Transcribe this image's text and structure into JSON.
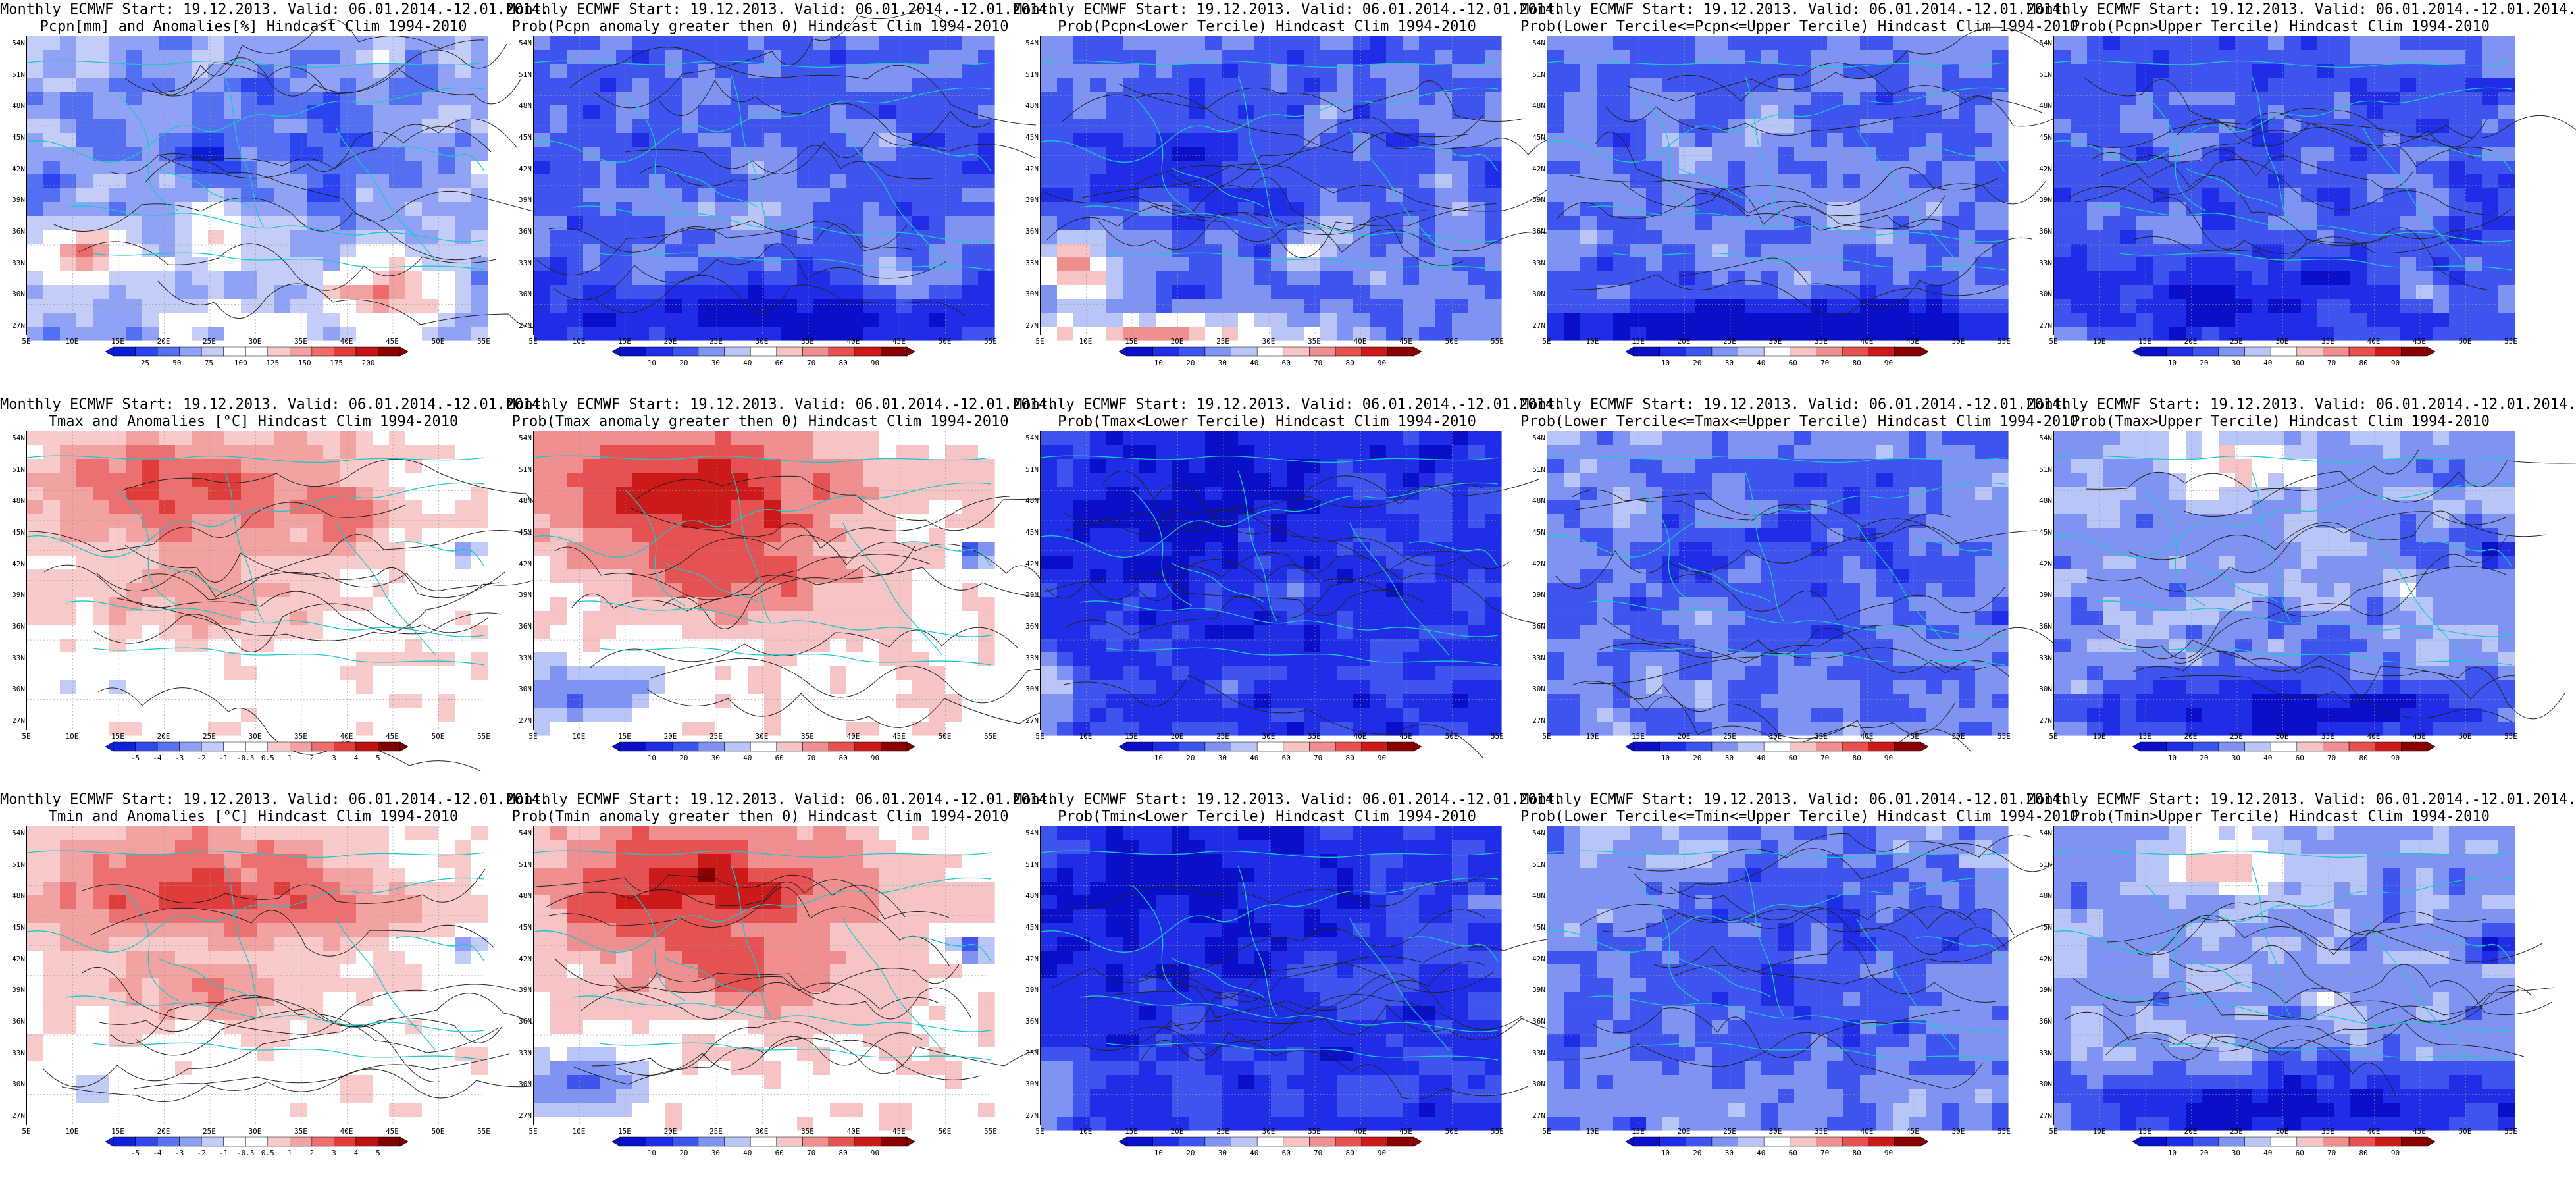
{
  "layout": {
    "rows": 3,
    "cols": 5
  },
  "axes": {
    "lat_labels": [
      "54N",
      "51N",
      "48N",
      "45N",
      "42N",
      "39N",
      "36N",
      "33N",
      "30N",
      "27N"
    ],
    "lon_labels": [
      "5E",
      "10E",
      "15E",
      "20E",
      "25E",
      "30E",
      "35E",
      "40E",
      "45E",
      "50E",
      "55E"
    ]
  },
  "palettes": {
    "anom_pcpn": {
      "colors": [
        "#0a1cd6",
        "#2a45f0",
        "#5470f2",
        "#8fa2f5",
        "#c4cdf8",
        "#ffffff",
        "#ffffff",
        "#f8c9c9",
        "#f3a0a0",
        "#ec6c6c",
        "#e33a3a",
        "#c21414",
        "#8a0000"
      ],
      "labels": [
        "25",
        "50",
        "75",
        "100",
        "125",
        "150",
        "175",
        "200"
      ]
    },
    "anom_temp": {
      "colors": [
        "#1020d8",
        "#3248ec",
        "#5a72f2",
        "#8ea0f5",
        "#c2ccf8",
        "#ffffff",
        "#ffffff",
        "#f8caca",
        "#f3a2a2",
        "#ec7070",
        "#e03c3c",
        "#bc1212",
        "#7e0000"
      ],
      "labels": [
        "-5",
        "-4",
        "-3",
        "-2",
        "-1",
        "-0.5",
        "0.5",
        "1",
        "2",
        "3",
        "4",
        "5"
      ]
    },
    "prob": {
      "colors": [
        "#0a10c8",
        "#1f2ee6",
        "#3d54ef",
        "#7f93f3",
        "#b9c4f7",
        "#ffffff",
        "#f6c4c4",
        "#ef8f8f",
        "#e65252",
        "#cc1a1a",
        "#8a0000"
      ],
      "labels": [
        "10",
        "20",
        "30",
        "40",
        "60",
        "70",
        "80",
        "90"
      ]
    }
  },
  "panels": [
    {
      "id": "r1c1",
      "title": "Monthly ECMWF Start: 19.12.2013. Valid: 06.01.2014.-12.01.2014.\nPcpn[mm] and Anomalies[%] Hindcast Clim 1994-2010",
      "palette": "anom_pcpn",
      "theme": "pcpn-anom"
    },
    {
      "id": "r1c2",
      "title": "Monthly ECMWF Start: 19.12.2013. Valid: 06.01.2014.-12.01.2014.\nProb(Pcpn anomaly greater then 0) Hindcast Clim 1994-2010",
      "palette": "prob",
      "theme": "pcpn-pos"
    },
    {
      "id": "r1c3",
      "title": "Monthly ECMWF Start: 19.12.2013. Valid: 06.01.2014.-12.01.2014.\nProb(Pcpn<Lower Tercile) Hindcast Clim 1994-2010",
      "palette": "prob",
      "theme": "pcpn-lower"
    },
    {
      "id": "r1c4",
      "title": "Monthly ECMWF Start: 19.12.2013. Valid: 06.01.2014.-12.01.2014.\nProb(Lower Tercile<=Pcpn<=Upper Tercile) Hindcast Clim 1994-2010",
      "palette": "prob",
      "theme": "pcpn-mid"
    },
    {
      "id": "r1c5",
      "title": "Monthly ECMWF Start: 19.12.2013. Valid: 06.01.2014.-12.01.2014.\nProb(Pcpn>Upper Tercile) Hindcast Clim 1994-2010",
      "palette": "prob",
      "theme": "pcpn-upper"
    },
    {
      "id": "r2c1",
      "title": "Monthly ECMWF Start: 19.12.2013. Valid: 06.01.2014.-12.01.2014.\nTmax and Anomalies [°C] Hindcast Clim 1994-2010",
      "palette": "anom_temp",
      "theme": "t-anom"
    },
    {
      "id": "r2c2",
      "title": "Monthly ECMWF Start: 19.12.2013. Valid: 06.01.2014.-12.01.2014.\nProb(Tmax anomaly greater then 0) Hindcast Clim 1994-2010",
      "palette": "prob",
      "theme": "t-pos"
    },
    {
      "id": "r2c3",
      "title": "Monthly ECMWF Start: 19.12.2013. Valid: 06.01.2014.-12.01.2014.\nProb(Tmax<Lower Tercile) Hindcast Clim 1994-2010",
      "palette": "prob",
      "theme": "t-lower"
    },
    {
      "id": "r2c4",
      "title": "Monthly ECMWF Start: 19.12.2013. Valid: 06.01.2014.-12.01.2014.\nProb(Lower Tercile<=Tmax<=Upper Tercile) Hindcast Clim 1994-2010",
      "palette": "prob",
      "theme": "t-mid"
    },
    {
      "id": "r2c5",
      "title": "Monthly ECMWF Start: 19.12.2013. Valid: 06.01.2014.-12.01.2014.\nProb(Tmax>Upper Tercile) Hindcast Clim 1994-2010",
      "palette": "prob",
      "theme": "t-upper"
    },
    {
      "id": "r3c1",
      "title": "Monthly ECMWF Start: 19.12.2013. Valid: 06.01.2014.-12.01.2014.\nTmin and Anomalies [°C] Hindcast Clim 1994-2010",
      "palette": "anom_temp",
      "theme": "t-anom"
    },
    {
      "id": "r3c2",
      "title": "Monthly ECMWF Start: 19.12.2013. Valid: 06.01.2014.-12.01.2014.\nProb(Tmin anomaly greater then 0) Hindcast Clim 1994-2010",
      "palette": "prob",
      "theme": "t-pos"
    },
    {
      "id": "r3c3",
      "title": "Monthly ECMWF Start: 19.12.2013. Valid: 06.01.2014.-12.01.2014.\nProb(Tmin<Lower Tercile) Hindcast Clim 1994-2010",
      "palette": "prob",
      "theme": "t-lower"
    },
    {
      "id": "r3c4",
      "title": "Monthly ECMWF Start: 19.12.2013. Valid: 06.01.2014.-12.01.2014.\nProb(Lower Tercile<=Tmin<=Upper Tercile) Hindcast Clim 1994-2010",
      "palette": "prob",
      "theme": "t-mid"
    },
    {
      "id": "r3c5",
      "title": "Monthly ECMWF Start: 19.12.2013. Valid: 06.01.2014.-12.01.2014.\nProb(Tmin>Upper Tercile) Hindcast Clim 1994-2010",
      "palette": "prob",
      "theme": "t-upper"
    }
  ]
}
